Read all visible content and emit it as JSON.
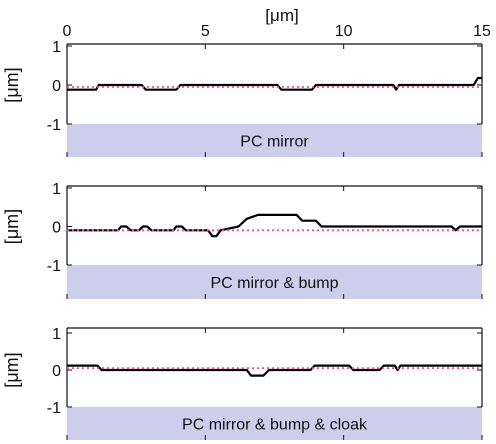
{
  "figure": {
    "x_unit_label": "[μm]",
    "x_ticks": [
      0,
      5,
      10,
      15
    ],
    "xlim": [
      0,
      15
    ]
  },
  "colors": {
    "profile": "#000000",
    "reference": "#e2559b",
    "band": "#cdcdec",
    "axis": "#111111"
  },
  "chart_data": [
    {
      "type": "line",
      "title": "PC mirror",
      "xlabel": "[μm]",
      "ylabel": "[μm]",
      "xlim": [
        0,
        15
      ],
      "ylim": [
        -1,
        1
      ],
      "y_ticks": [
        1,
        0,
        -1
      ],
      "grid": false,
      "series": [
        {
          "style": "solid",
          "x": [
            0,
            1.05,
            1.15,
            2.7,
            2.85,
            3.95,
            4.1,
            7.6,
            7.75,
            8.85,
            9.0,
            11.8,
            11.9,
            12.0,
            14.7,
            14.85,
            15.0
          ],
          "y": [
            -0.12,
            -0.12,
            0.0,
            0.0,
            -0.12,
            -0.12,
            0.0,
            0.0,
            -0.12,
            -0.12,
            0.0,
            0.0,
            -0.12,
            0.0,
            0.0,
            0.18,
            0.18
          ]
        },
        {
          "style": "dotted",
          "x": [
            0,
            15
          ],
          "y": [
            -0.05,
            -0.05
          ]
        }
      ]
    },
    {
      "type": "line",
      "title": "PC mirror & bump",
      "xlabel": "[μm]",
      "ylabel": "[μm]",
      "xlim": [
        0,
        15
      ],
      "ylim": [
        -1,
        1
      ],
      "y_ticks": [
        1,
        0,
        -1
      ],
      "grid": false,
      "series": [
        {
          "style": "solid",
          "x": [
            0,
            1.85,
            1.95,
            2.15,
            2.3,
            2.6,
            2.75,
            2.9,
            3.05,
            3.85,
            3.95,
            4.15,
            4.3,
            5.1,
            5.25,
            5.4,
            5.55,
            6.2,
            6.5,
            6.9,
            7.2,
            8.3,
            8.5,
            9.0,
            9.2,
            13.9,
            14.05,
            14.2,
            15.0
          ],
          "y": [
            -0.1,
            -0.1,
            0.0,
            0.0,
            -0.1,
            -0.1,
            0.0,
            0.0,
            -0.1,
            -0.1,
            0.0,
            0.0,
            -0.1,
            -0.1,
            -0.25,
            -0.25,
            -0.1,
            0.0,
            0.2,
            0.3,
            0.3,
            0.3,
            0.15,
            0.15,
            0.0,
            0.0,
            -0.1,
            0.0,
            0.0
          ]
        },
        {
          "style": "dotted",
          "x": [
            0,
            15
          ],
          "y": [
            -0.1,
            -0.1
          ]
        }
      ]
    },
    {
      "type": "line",
      "title": "PC mirror & bump & cloak",
      "xlabel": "[μm]",
      "ylabel": "[μm]",
      "xlim": [
        0,
        15
      ],
      "ylim": [
        -1,
        1
      ],
      "y_ticks": [
        1,
        0,
        -1
      ],
      "grid": false,
      "series": [
        {
          "style": "solid",
          "x": [
            0,
            1.1,
            1.25,
            6.5,
            6.65,
            7.1,
            7.3,
            8.8,
            8.95,
            10.2,
            10.35,
            11.3,
            11.45,
            11.85,
            11.95,
            12.05,
            14.3,
            15.0
          ],
          "y": [
            0.12,
            0.12,
            0.0,
            0.0,
            -0.15,
            -0.15,
            0.0,
            0.0,
            0.12,
            0.12,
            0.0,
            0.0,
            0.12,
            0.12,
            0.0,
            0.12,
            0.12,
            0.12
          ]
        },
        {
          "style": "dotted",
          "x": [
            0,
            15
          ],
          "y": [
            0.05,
            0.05
          ]
        }
      ]
    }
  ]
}
